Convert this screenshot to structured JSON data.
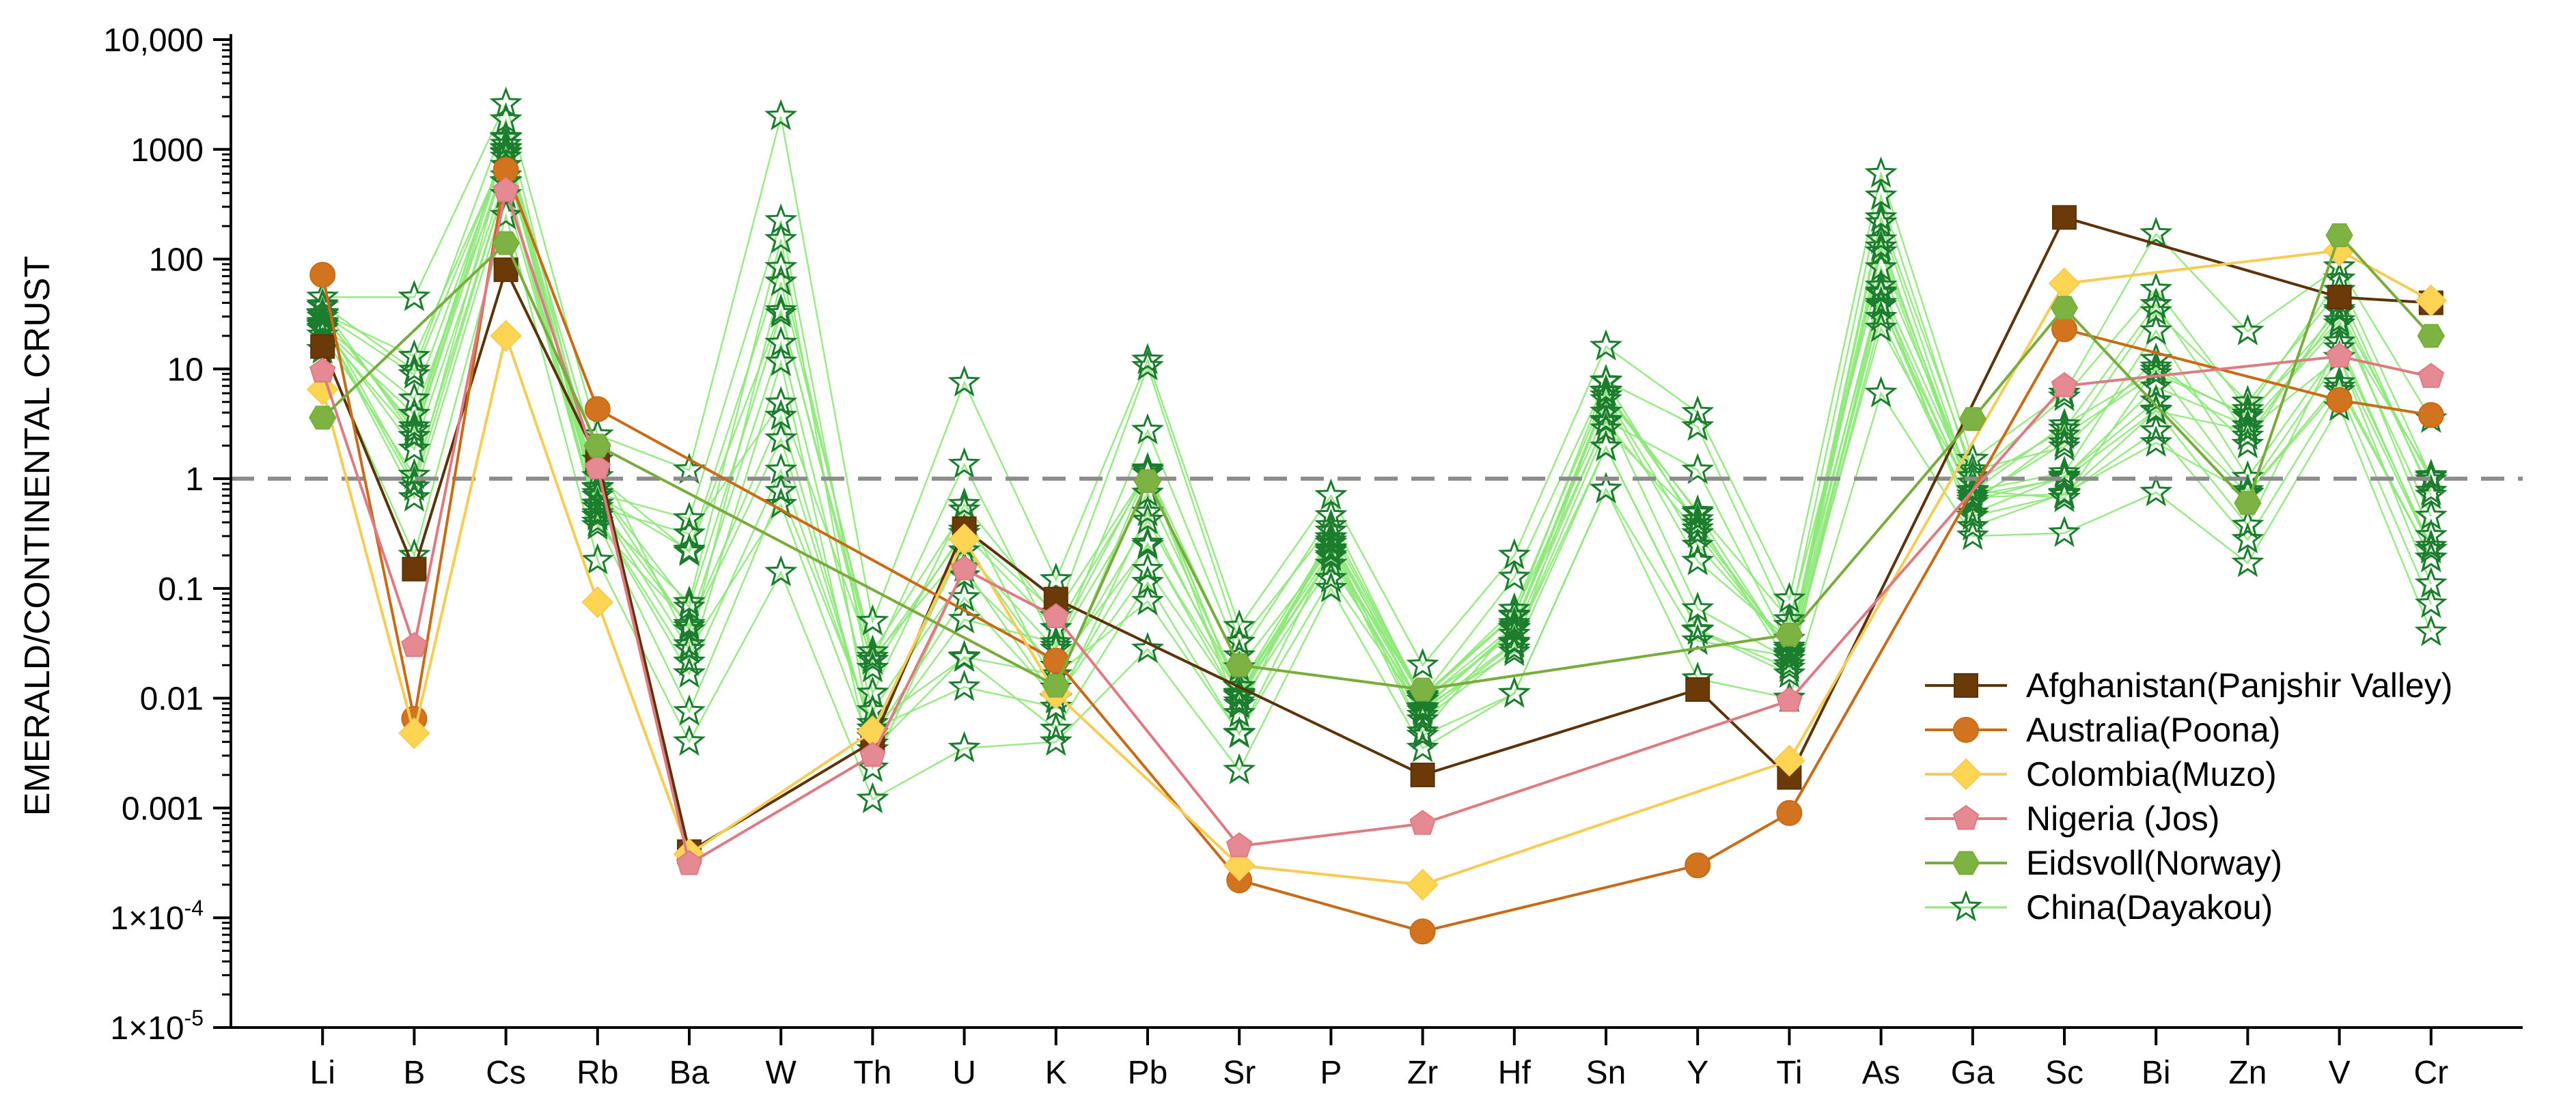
{
  "chart_data": {
    "type": "line",
    "yscale": "log",
    "ylim": [
      1e-05,
      10000
    ],
    "ylabel": "EMERALD/CONTINENTAL CRUST",
    "xlabel": "",
    "y_ticks": [
      {
        "value": 10000,
        "label": "10,000",
        "base": "",
        "exp": ""
      },
      {
        "value": 1000,
        "label": "1000",
        "base": "",
        "exp": ""
      },
      {
        "value": 100,
        "label": "100",
        "base": "",
        "exp": ""
      },
      {
        "value": 10,
        "label": "10",
        "base": "",
        "exp": ""
      },
      {
        "value": 1,
        "label": "1",
        "base": "",
        "exp": ""
      },
      {
        "value": 0.1,
        "label": "0.1",
        "base": "",
        "exp": ""
      },
      {
        "value": 0.01,
        "label": "0.01",
        "base": "",
        "exp": ""
      },
      {
        "value": 0.001,
        "label": "0.001",
        "base": "",
        "exp": ""
      },
      {
        "value": 0.0001,
        "label": "",
        "base": "1×10",
        "exp": "-4"
      },
      {
        "value": 1e-05,
        "label": "",
        "base": "1×10",
        "exp": "-5"
      }
    ],
    "categories": [
      "Li",
      "B",
      "Cs",
      "Rb",
      "Ba",
      "W",
      "Th",
      "U",
      "K",
      "Pb",
      "Sr",
      "P",
      "Zr",
      "Hf",
      "Sn",
      "Y",
      "Ti",
      "As",
      "Ga",
      "Sc",
      "Bi",
      "Zn",
      "V",
      "Cr"
    ],
    "reference_line": {
      "value": 1,
      "style": "dashed",
      "color": "#8c8c8c"
    },
    "series": [
      {
        "name": "Afghanistan(Panjshir Valley)",
        "marker": "square",
        "color": "#5b3306",
        "fill": "#6b3a08",
        "values": [
          16,
          0.15,
          80,
          1.5,
          0.0004,
          null,
          0.004,
          0.35,
          0.08,
          null,
          null,
          null,
          0.002,
          null,
          null,
          0.012,
          0.0019,
          null,
          null,
          240,
          null,
          null,
          45,
          40
        ]
      },
      {
        "name": "Australia(Poona)",
        "marker": "circle",
        "color": "#c86a16",
        "fill": "#d2741f",
        "values": [
          72,
          0.0065,
          650,
          4.3,
          null,
          null,
          null,
          null,
          0.022,
          null,
          0.00022,
          null,
          7.5e-05,
          null,
          null,
          0.0003,
          0.0009,
          null,
          null,
          23,
          null,
          null,
          5.2,
          3.8
        ]
      },
      {
        "name": "Colombia(Muzo)",
        "marker": "diamond",
        "color": "#f6cc55",
        "fill": "#fdd552",
        "values": [
          6.5,
          0.0048,
          20,
          0.075,
          0.00038,
          null,
          0.005,
          0.28,
          0.011,
          null,
          0.0003,
          null,
          0.0002,
          null,
          null,
          null,
          0.0027,
          null,
          null,
          60,
          null,
          null,
          120,
          42
        ]
      },
      {
        "name": "Nigeria (Jos)",
        "marker": "pentagon",
        "color": "#de7b82",
        "fill": "#e58a92",
        "values": [
          9.5,
          0.03,
          420,
          1.25,
          0.00031,
          null,
          0.003,
          0.15,
          0.055,
          null,
          0.00045,
          null,
          0.00072,
          null,
          null,
          null,
          0.0095,
          null,
          null,
          7,
          null,
          null,
          13,
          8.5
        ]
      },
      {
        "name": "Eidsvoll(Norway)",
        "marker": "hexagon",
        "color": "#78ac3c",
        "fill": "#7cb342",
        "values": [
          3.6,
          null,
          140,
          2.0,
          null,
          null,
          null,
          null,
          0.013,
          0.95,
          0.02,
          null,
          0.012,
          null,
          null,
          null,
          0.038,
          null,
          3.5,
          36,
          null,
          0.6,
          165,
          20
        ]
      },
      {
        "name": "China(Dayakou)",
        "marker": "star",
        "color": "#8ee87a",
        "stroke": "#1b7d2d",
        "ranges": [
          [
            15,
            45
          ],
          [
            0.2,
            45
          ],
          [
            250,
            2600
          ],
          [
            0.18,
            2.5
          ],
          [
            0.004,
            1.2
          ],
          [
            0.14,
            2000
          ],
          [
            0.0012,
            0.05
          ],
          [
            0.0035,
            7.5
          ],
          [
            0.004,
            0.12
          ],
          [
            0.028,
            12
          ],
          [
            0.0022,
            0.045
          ],
          [
            0.1,
            0.7
          ],
          [
            0.0035,
            0.02
          ],
          [
            0.011,
            0.2
          ],
          [
            0.8,
            16
          ],
          [
            0.015,
            4
          ],
          [
            0.01,
            0.08
          ],
          [
            6,
            600
          ],
          [
            0.3,
            1.5
          ],
          [
            0.32,
            6
          ],
          [
            0.75,
            170
          ],
          [
            0.17,
            22
          ],
          [
            4.5,
            85
          ],
          [
            0.04,
            3.5
          ]
        ]
      }
    ]
  }
}
